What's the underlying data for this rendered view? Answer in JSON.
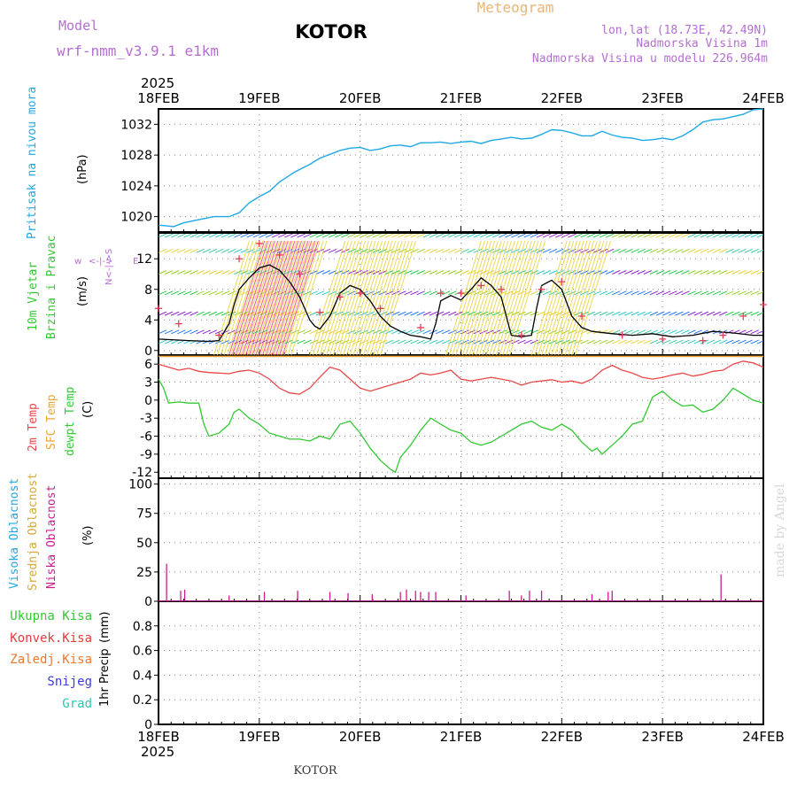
{
  "header": {
    "model_label": "Model",
    "model_name": "wrf-nmm_v3.9.1 e1km",
    "station": "KOTOR",
    "product": "Meteogram",
    "lonlat": "lon,lat (18.73E, 42.49N)",
    "elevation": "Nadmorska Visina 1m",
    "model_elevation": "Nadmorska Visina u modelu 226.964m"
  },
  "footer": {
    "station": "KOTOR",
    "credit": "made by Angel"
  },
  "colors": {
    "pressure": "#1ea8e6",
    "temp2m": "#e84848",
    "sfc_temp": "#e8a63a",
    "dewpoint": "#32c832",
    "wind_speed": "#000000",
    "gust": "#e0405a",
    "low_cloud": "#c81e8c",
    "mid_cloud": "#d4a83a",
    "high_cloud": "#1ea8e6",
    "total_precip": "#32c832",
    "conv_precip": "#e83a3a",
    "ice_precip": "#f0782a",
    "snow": "#3a3ae0",
    "hail": "#28c8b4",
    "title_purple": "#b46ed2"
  },
  "chart_data": [
    {
      "type": "line",
      "panel": "pressure",
      "year": "2025",
      "x_ticks": [
        "18FEB",
        "19FEB",
        "20FEB",
        "21FEB",
        "22FEB",
        "23FEB",
        "24FEB"
      ],
      "ylabel_main": "Pritisak na nivou mora",
      "ylabel_unit": "(hPa)",
      "ylim": [
        1018,
        1034
      ],
      "y_ticks": [
        1020,
        1024,
        1028,
        1032
      ],
      "grid": true,
      "series": [
        {
          "x": [
            0,
            0.08,
            0.15,
            0.25,
            0.4,
            0.55,
            0.7,
            0.8,
            0.9,
            1.0,
            1.1,
            1.2,
            1.35,
            1.5,
            1.6,
            1.7,
            1.8,
            1.9,
            2.0,
            2.1,
            2.2,
            2.3,
            2.4,
            2.5,
            2.6,
            2.7,
            2.8,
            2.9,
            3.0,
            3.1,
            3.2,
            3.3,
            3.4,
            3.5,
            3.6,
            3.7,
            3.8,
            3.9,
            4.0,
            4.1,
            4.2,
            4.3,
            4.4,
            4.5,
            4.6,
            4.7,
            4.8,
            4.9,
            5.0,
            5.1,
            5.2,
            5.3,
            5.4,
            5.5,
            5.6,
            5.7,
            5.8,
            5.9,
            6.0
          ],
          "values": [
            1018.9,
            1018.8,
            1018.7,
            1019.2,
            1019.6,
            1020.0,
            1020.0,
            1020.5,
            1021.8,
            1022.6,
            1023.3,
            1024.5,
            1025.8,
            1026.8,
            1027.6,
            1028.1,
            1028.6,
            1028.9,
            1029.0,
            1028.6,
            1028.8,
            1029.2,
            1029.3,
            1029.1,
            1029.6,
            1029.6,
            1029.7,
            1029.5,
            1029.7,
            1029.8,
            1029.5,
            1029.9,
            1030.1,
            1030.3,
            1030.1,
            1030.2,
            1030.7,
            1031.3,
            1031.2,
            1030.9,
            1030.5,
            1030.5,
            1031.1,
            1030.6,
            1030.3,
            1030.2,
            1029.9,
            1030.0,
            1030.2,
            1030.0,
            1030.5,
            1031.3,
            1032.3,
            1032.6,
            1032.7,
            1033.0,
            1033.3,
            1033.9,
            1034.0
          ]
        }
      ]
    },
    {
      "type": "line",
      "panel": "wind",
      "ylabel_main": "10m Vjetar",
      "ylabel_sub": "Brzina i Pravac",
      "ylabel_unit": "(m/s)",
      "compass_labels": [
        "w",
        "<-|->",
        "E",
        "N<-|->S"
      ],
      "ylim": [
        -0.6,
        15.5
      ],
      "y_ticks": [
        0,
        4,
        8,
        12
      ],
      "grid": true,
      "series": [
        {
          "name": "wind_speed",
          "x": [
            0,
            0.3,
            0.5,
            0.6,
            0.7,
            0.75,
            0.8,
            0.9,
            1.0,
            1.1,
            1.2,
            1.3,
            1.4,
            1.5,
            1.55,
            1.6,
            1.7,
            1.8,
            1.9,
            2.0,
            2.1,
            2.2,
            2.3,
            2.4,
            2.5,
            2.6,
            2.7,
            2.75,
            2.8,
            2.9,
            3.0,
            3.1,
            3.2,
            3.3,
            3.4,
            3.5,
            3.6,
            3.7,
            3.75,
            3.8,
            3.9,
            4.0,
            4.1,
            4.2,
            4.3,
            4.5,
            4.7,
            4.9,
            5.1,
            5.3,
            5.5,
            5.7,
            5.9,
            6.0
          ],
          "values": [
            1.5,
            1.3,
            1.2,
            1.3,
            3.5,
            6.0,
            8.0,
            9.5,
            10.8,
            11.2,
            10.5,
            9.0,
            7.0,
            4.0,
            3.2,
            2.8,
            4.5,
            7.5,
            8.5,
            8.0,
            6.5,
            4.5,
            3.2,
            2.5,
            2.0,
            1.8,
            1.5,
            3.5,
            6.5,
            7.2,
            6.6,
            8.0,
            9.5,
            8.5,
            7.0,
            2.0,
            1.8,
            2.0,
            5.5,
            8.5,
            9.2,
            8.0,
            4.5,
            3.0,
            2.5,
            2.2,
            2.0,
            2.2,
            1.8,
            2.0,
            2.5,
            2.3,
            2.0,
            2.0
          ]
        },
        {
          "name": "gusts",
          "x": [
            0,
            0.2,
            0.6,
            0.8,
            1.0,
            1.2,
            1.4,
            1.6,
            1.8,
            2.0,
            2.2,
            2.6,
            2.8,
            3.0,
            3.2,
            3.4,
            3.6,
            3.8,
            4.0,
            4.2,
            4.6,
            5.0,
            5.4,
            5.6,
            5.8,
            6.0
          ],
          "values": [
            5.5,
            3.5,
            2.0,
            12.0,
            14.0,
            12.5,
            10.0,
            5.0,
            7.0,
            7.5,
            5.5,
            3.0,
            7.5,
            7.5,
            8.5,
            8.0,
            2.0,
            8.0,
            9.0,
            4.5,
            2.0,
            1.5,
            1.3,
            2.0,
            4.5,
            6.0
          ]
        }
      ]
    },
    {
      "type": "line",
      "panel": "temperature",
      "ylabel_lines": [
        "2m Temp",
        "SFC Temp",
        "dewpt Temp"
      ],
      "ylabel_unit": "(C)",
      "ylim": [
        -13,
        7.5
      ],
      "y_ticks": [
        -12,
        -9,
        -6,
        -3,
        0,
        3,
        6
      ],
      "grid": true,
      "series": [
        {
          "name": "2m Temp",
          "x": [
            0,
            0.1,
            0.2,
            0.3,
            0.4,
            0.5,
            0.6,
            0.7,
            0.8,
            0.9,
            1.0,
            1.1,
            1.2,
            1.3,
            1.4,
            1.5,
            1.6,
            1.7,
            1.8,
            1.9,
            2.0,
            2.1,
            2.2,
            2.3,
            2.4,
            2.5,
            2.6,
            2.7,
            2.8,
            2.9,
            3.0,
            3.1,
            3.2,
            3.3,
            3.4,
            3.5,
            3.6,
            3.7,
            3.8,
            3.9,
            4.0,
            4.1,
            4.2,
            4.3,
            4.4,
            4.5,
            4.6,
            4.7,
            4.8,
            4.9,
            5.0,
            5.1,
            5.2,
            5.3,
            5.4,
            5.5,
            5.6,
            5.7,
            5.8,
            5.9,
            6.0
          ],
          "values": [
            6.0,
            5.5,
            5.0,
            5.3,
            4.8,
            4.6,
            4.5,
            4.4,
            4.8,
            5.0,
            4.5,
            3.5,
            2.0,
            1.2,
            1.0,
            2.0,
            3.8,
            5.5,
            5.0,
            3.5,
            2.0,
            1.5,
            2.0,
            2.5,
            3.0,
            3.5,
            4.5,
            4.2,
            4.5,
            5.0,
            3.5,
            3.2,
            3.5,
            3.8,
            3.5,
            3.2,
            2.5,
            3.0,
            3.2,
            3.4,
            3.0,
            3.2,
            2.8,
            3.5,
            5.0,
            5.8,
            5.0,
            4.5,
            3.8,
            3.5,
            3.8,
            4.2,
            4.5,
            4.0,
            4.3,
            4.8,
            5.0,
            6.0,
            6.5,
            6.2,
            5.5
          ]
        },
        {
          "name": "SFC Temp",
          "x": [
            0,
            6.0
          ],
          "values": [
            7.3,
            7.3
          ]
        },
        {
          "name": "dewpt Temp",
          "x": [
            0,
            0.05,
            0.1,
            0.2,
            0.3,
            0.4,
            0.45,
            0.5,
            0.6,
            0.7,
            0.75,
            0.8,
            0.9,
            1.0,
            1.1,
            1.2,
            1.3,
            1.4,
            1.5,
            1.6,
            1.7,
            1.8,
            1.9,
            2.0,
            2.1,
            2.2,
            2.3,
            2.35,
            2.4,
            2.5,
            2.6,
            2.7,
            2.8,
            2.9,
            3.0,
            3.1,
            3.2,
            3.3,
            3.4,
            3.5,
            3.6,
            3.7,
            3.8,
            3.9,
            4.0,
            4.1,
            4.2,
            4.3,
            4.35,
            4.4,
            4.5,
            4.6,
            4.7,
            4.8,
            4.9,
            5.0,
            5.1,
            5.2,
            5.3,
            5.4,
            5.5,
            5.6,
            5.7,
            5.8,
            5.9,
            6.0
          ],
          "values": [
            3.5,
            2.0,
            -0.5,
            -0.3,
            -0.5,
            -0.5,
            -4.0,
            -6.0,
            -5.5,
            -4.0,
            -2.0,
            -1.5,
            -3.0,
            -4.0,
            -5.5,
            -6.0,
            -6.5,
            -6.5,
            -6.8,
            -6.0,
            -6.5,
            -4.0,
            -3.5,
            -5.5,
            -8.0,
            -10.0,
            -11.5,
            -12.0,
            -9.5,
            -7.5,
            -5.0,
            -3.0,
            -4.0,
            -5.0,
            -5.5,
            -7.0,
            -7.5,
            -7.0,
            -6.0,
            -5.0,
            -4.0,
            -3.5,
            -4.5,
            -5.0,
            -4.0,
            -5.0,
            -7.0,
            -8.5,
            -8.0,
            -9.0,
            -7.5,
            -6.0,
            -4.0,
            -3.5,
            0.5,
            1.5,
            0.0,
            -1.0,
            -0.8,
            -2.0,
            -1.5,
            0.0,
            2.0,
            1.0,
            0.0,
            -0.5
          ]
        }
      ]
    },
    {
      "type": "bar",
      "panel": "cloud",
      "ylabel_lines": [
        "Visoka Oblacnost",
        "Srednja Oblacnost",
        "Niska Oblacnost"
      ],
      "ylabel_unit": "(%)",
      "ylim": [
        0,
        105
      ],
      "y_ticks": [
        0,
        25,
        50,
        75,
        100
      ],
      "grid": true,
      "series": [
        {
          "name": "Niska Oblacnost",
          "x": [
            0.08,
            0.22,
            0.26,
            0.7,
            1.05,
            1.38,
            1.7,
            1.88,
            2.12,
            2.4,
            2.46,
            2.55,
            2.6,
            2.68,
            2.75,
            3.05,
            3.48,
            3.6,
            3.68,
            3.8,
            4.3,
            4.46,
            4.5,
            5.58
          ],
          "values": [
            32,
            9,
            10,
            5,
            8,
            9,
            8,
            7,
            6,
            8,
            10,
            9,
            8,
            8,
            8,
            5,
            9,
            5,
            9,
            9,
            6,
            8,
            9,
            23
          ]
        }
      ]
    },
    {
      "type": "bar",
      "panel": "precipitation",
      "legend": [
        "Ukupna Kisa",
        "Konvek.Kisa",
        "Zaledj.Kisa",
        "Snijeg",
        "Grad"
      ],
      "ylabel_main": "1hr Precip",
      "ylabel_unit": "(mm)",
      "ylim": [
        0,
        1.0
      ],
      "y_ticks": [
        0,
        0.2,
        0.4,
        0.6,
        0.8
      ],
      "grid": true,
      "series": [
        {
          "name": "Ukupna Kisa",
          "values": []
        }
      ]
    }
  ]
}
